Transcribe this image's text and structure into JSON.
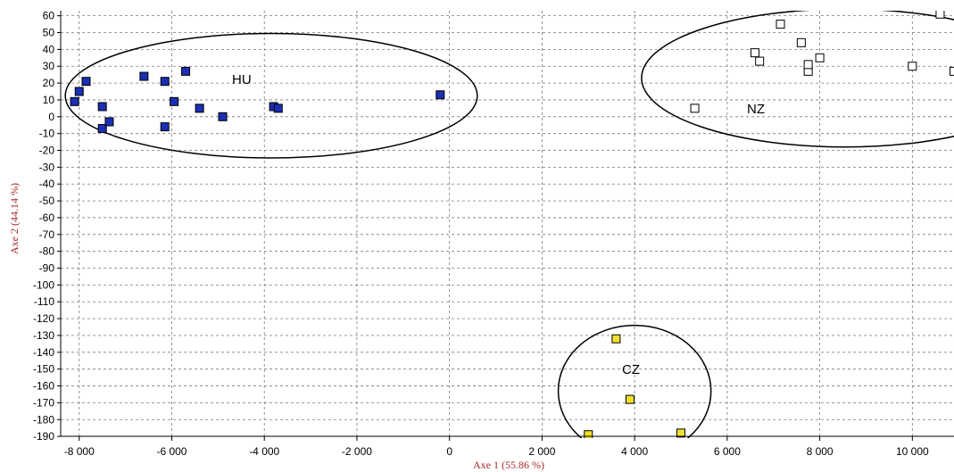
{
  "chart_data": {
    "type": "scatter",
    "title": "",
    "xlabel": "Axe 1 (55.86 %)",
    "ylabel": "Axe 2 (44.14 %)",
    "xlim": [
      -8400,
      10900
    ],
    "ylim": [
      -191,
      63
    ],
    "grid": true,
    "x_ticks": [
      -8000,
      -6000,
      -4000,
      -2000,
      0,
      2000,
      4000,
      6000,
      8000,
      10000
    ],
    "x_tick_labels": [
      "-8 000",
      "-6 000",
      "-4 000",
      "-2 000",
      "0",
      "2 000",
      "4 000",
      "6 000",
      "8 000",
      "10 000"
    ],
    "y_ticks": [
      60,
      50,
      40,
      30,
      20,
      10,
      0,
      -10,
      -20,
      -30,
      -40,
      -50,
      -60,
      -70,
      -80,
      -90,
      -100,
      -110,
      -120,
      -130,
      -140,
      -150,
      -160,
      -170,
      -180,
      -190
    ],
    "y_tick_labels": [
      "60",
      "50",
      "40",
      "30",
      "20",
      "10",
      "0",
      "-10",
      "-20",
      "-30",
      "-40",
      "-50",
      "-60",
      "-70",
      "-80",
      "-90",
      "-100",
      "-110",
      "-120",
      "-130",
      "-140",
      "-150",
      "-160",
      "-170",
      "-180",
      "-190"
    ],
    "series": [
      {
        "name": "HU",
        "marker": "filled-square",
        "color": "#1a2fb5",
        "points": [
          [
            -8100,
            9
          ],
          [
            -8000,
            15
          ],
          [
            -7850,
            21
          ],
          [
            -7500,
            6
          ],
          [
            -7500,
            -7
          ],
          [
            -7350,
            -3
          ],
          [
            -6600,
            24
          ],
          [
            -6150,
            21
          ],
          [
            -6150,
            -6
          ],
          [
            -5950,
            9
          ],
          [
            -5700,
            27
          ],
          [
            -5400,
            5
          ],
          [
            -4900,
            0
          ],
          [
            -3800,
            6
          ],
          [
            -3700,
            5
          ],
          [
            -200,
            13
          ]
        ],
        "ellipse": {
          "cx": -3850,
          "cy": 12.5,
          "rx": 4450,
          "ry": 37
        }
      },
      {
        "name": "NZ",
        "marker": "hollow-square",
        "color": "#000000",
        "points": [
          [
            5300,
            5
          ],
          [
            6600,
            38
          ],
          [
            6700,
            33
          ],
          [
            7150,
            55
          ],
          [
            7600,
            44
          ],
          [
            7750,
            27
          ],
          [
            7750,
            31
          ],
          [
            8000,
            35
          ],
          [
            10000,
            30
          ],
          [
            10600,
            61
          ],
          [
            10900,
            27
          ]
        ],
        "ellipse": {
          "cx": 8550,
          "cy": 23,
          "rx": 4400,
          "ry": 41
        }
      },
      {
        "name": "CZ",
        "marker": "filled-square",
        "color": "#f0e030",
        "points": [
          [
            3600,
            -132
          ],
          [
            3900,
            -168
          ],
          [
            3000,
            -189
          ],
          [
            5000,
            -188
          ]
        ],
        "ellipse": {
          "cx": 4000,
          "cy": -163,
          "rx": 1650,
          "ry": 39
        }
      }
    ],
    "annotations": [
      "HU",
      "NZ",
      "CZ"
    ]
  },
  "colors": {
    "axis_title": "#a52a2a",
    "grid": "#7a7a7a",
    "hu_fill": "#1a2fb5",
    "cz_fill": "#f0e030",
    "marker_stroke": "#000000"
  }
}
